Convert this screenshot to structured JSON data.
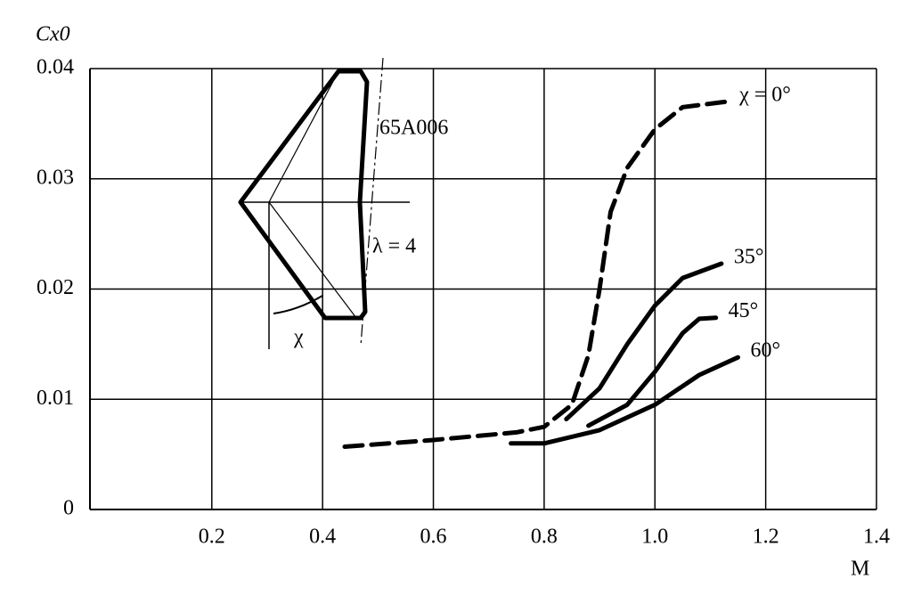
{
  "chart_data": {
    "type": "line",
    "y_label": "Cx0",
    "x_label": "M",
    "annotations": [
      "65A006",
      "λ = 4",
      "χ"
    ],
    "xlim": [
      -0.02,
      1.4
    ],
    "ylim": [
      0,
      0.04
    ],
    "xticks": [
      0.2,
      0.4,
      0.6,
      0.8,
      {
        "value": 1,
        "label": "1.0"
      },
      1.2,
      1.4
    ],
    "yticks": [
      0,
      0.01,
      0.02,
      0.03,
      0.04
    ],
    "grid": true,
    "series": [
      {
        "name": "χ = 0°",
        "color": "#000000",
        "dash": true,
        "x": [
          0.44,
          0.6,
          0.75,
          0.8,
          0.85,
          0.88,
          0.9,
          0.92,
          0.95,
          1.0,
          1.05,
          1.13
        ],
        "values": [
          0.0057,
          0.0063,
          0.007,
          0.0075,
          0.0095,
          0.014,
          0.02,
          0.027,
          0.031,
          0.0345,
          0.0365,
          0.037
        ]
      },
      {
        "name": "35°",
        "color": "#000000",
        "dash": false,
        "x": [
          0.84,
          0.9,
          0.95,
          1.0,
          1.05,
          1.12
        ],
        "values": [
          0.0082,
          0.011,
          0.015,
          0.0185,
          0.021,
          0.0223
        ]
      },
      {
        "name": "45°",
        "color": "#000000",
        "dash": false,
        "x": [
          0.88,
          0.95,
          1.0,
          1.05,
          1.08,
          1.11
        ],
        "values": [
          0.0076,
          0.0095,
          0.0125,
          0.016,
          0.0173,
          0.0174
        ]
      },
      {
        "name": "60°",
        "color": "#000000",
        "dash": false,
        "x": [
          0.74,
          0.8,
          0.9,
          1.0,
          1.08,
          1.15
        ],
        "values": [
          0.006,
          0.006,
          0.0072,
          0.0095,
          0.0122,
          0.0138
        ]
      }
    ]
  }
}
